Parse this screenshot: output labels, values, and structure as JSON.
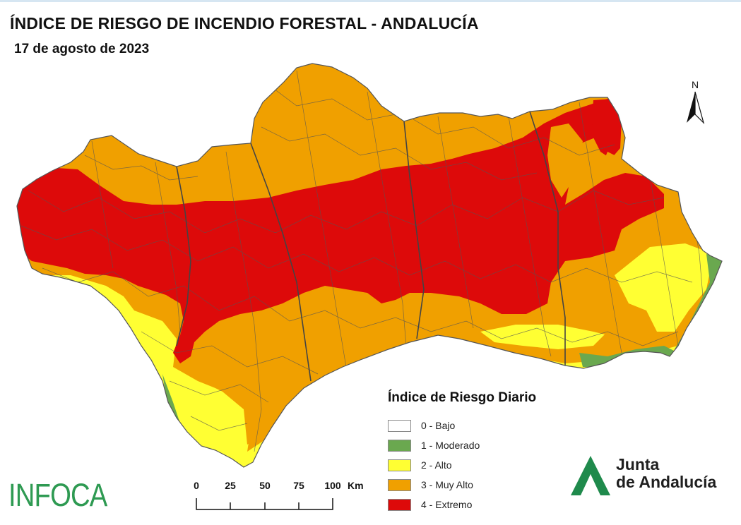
{
  "title": "ÍNDICE DE RIESGO DE INCENDIO FORESTAL - ANDALUCÍA",
  "subtitle": "17 de agosto de 2023",
  "north_label": "N",
  "legend": {
    "title": "Índice de Riesgo Diario",
    "items": [
      {
        "label": "0 - Bajo",
        "color": "#ffffff"
      },
      {
        "label": "1 - Moderado",
        "color": "#6aa84f"
      },
      {
        "label": "2 - Alto",
        "color": "#ffff33"
      },
      {
        "label": "3 - Muy Alto",
        "color": "#f0a000"
      },
      {
        "label": "4 - Extremo",
        "color": "#dd0a0a"
      }
    ]
  },
  "scale_bar": {
    "ticks": [
      "0",
      "25",
      "50",
      "75",
      "100"
    ],
    "unit": "Km"
  },
  "infoca_logo": "INFOCA",
  "junta_logo": {
    "line1": "Junta",
    "line2": "de Andalucía"
  }
}
